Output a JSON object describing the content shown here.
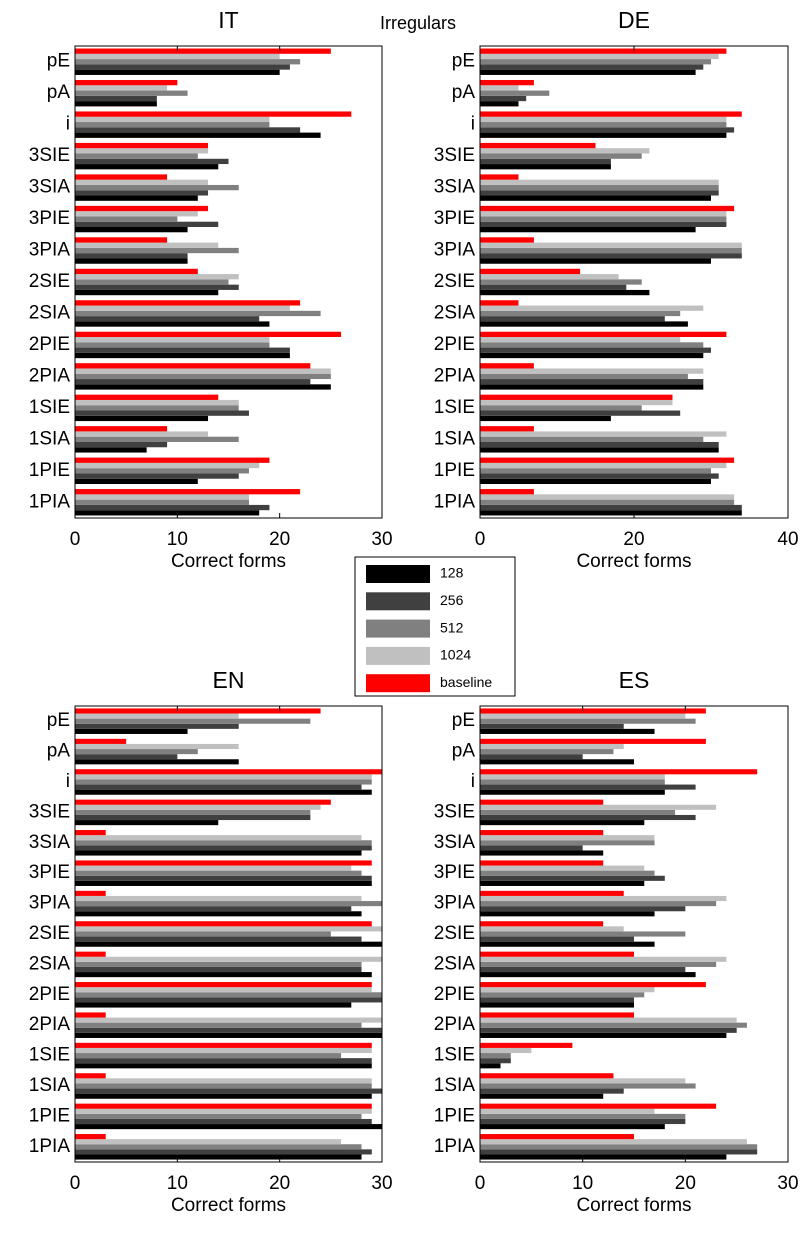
{
  "title": "Irregulars",
  "chart_data": [
    {
      "type": "bar",
      "orientation": "horizontal",
      "title": "IT",
      "xlabel": "Correct forms",
      "categories": [
        "pE",
        "pA",
        "i",
        "3SIE",
        "3SIA",
        "3PIE",
        "3PIA",
        "2SIE",
        "2SIA",
        "2PIE",
        "2PIA",
        "1SIE",
        "1SIA",
        "1PIE",
        "1PIA"
      ],
      "xlim": [
        0,
        30
      ],
      "xticks": [
        0,
        10,
        20,
        30
      ],
      "series": [
        {
          "name": "128",
          "color": "#000000",
          "values": [
            20,
            8,
            24,
            14,
            12,
            11,
            11,
            14,
            19,
            21,
            25,
            13,
            7,
            12,
            18
          ]
        },
        {
          "name": "256",
          "color": "#404040",
          "values": [
            21,
            8,
            22,
            15,
            13,
            14,
            11,
            16,
            18,
            21,
            23,
            17,
            9,
            16,
            19
          ]
        },
        {
          "name": "512",
          "color": "#808080",
          "values": [
            22,
            11,
            19,
            12,
            16,
            10,
            16,
            15,
            24,
            19,
            25,
            16,
            16,
            17,
            17
          ]
        },
        {
          "name": "1024",
          "color": "#c0c0c0",
          "values": [
            20,
            9,
            19,
            13,
            13,
            12,
            14,
            16,
            21,
            19,
            25,
            16,
            13,
            18,
            17
          ]
        },
        {
          "name": "baseline",
          "color": "#ff0000",
          "values": [
            25,
            10,
            27,
            13,
            9,
            13,
            9,
            12,
            22,
            26,
            23,
            14,
            9,
            19,
            22
          ]
        }
      ]
    },
    {
      "type": "bar",
      "orientation": "horizontal",
      "title": "DE",
      "xlabel": "Correct forms",
      "categories": [
        "pE",
        "pA",
        "i",
        "3SIE",
        "3SIA",
        "3PIE",
        "3PIA",
        "2SIE",
        "2SIA",
        "2PIE",
        "2PIA",
        "1SIE",
        "1SIA",
        "1PIE",
        "1PIA"
      ],
      "xlim": [
        0,
        40
      ],
      "xticks": [
        0,
        20,
        40
      ],
      "series": [
        {
          "name": "128",
          "color": "#000000",
          "values": [
            28,
            5,
            32,
            17,
            30,
            28,
            30,
            22,
            27,
            29,
            29,
            17,
            31,
            30,
            34
          ]
        },
        {
          "name": "256",
          "color": "#404040",
          "values": [
            29,
            6,
            33,
            17,
            31,
            32,
            34,
            19,
            24,
            30,
            29,
            26,
            31,
            31,
            34
          ]
        },
        {
          "name": "512",
          "color": "#808080",
          "values": [
            30,
            9,
            32,
            21,
            31,
            32,
            34,
            21,
            26,
            29,
            27,
            21,
            29,
            30,
            33
          ]
        },
        {
          "name": "1024",
          "color": "#c0c0c0",
          "values": [
            31,
            5,
            32,
            22,
            31,
            32,
            34,
            18,
            29,
            26,
            29,
            25,
            32,
            32,
            33
          ]
        },
        {
          "name": "baseline",
          "color": "#ff0000",
          "values": [
            32,
            7,
            34,
            15,
            5,
            33,
            7,
            13,
            5,
            32,
            7,
            25,
            7,
            33,
            7
          ]
        }
      ]
    },
    {
      "type": "bar",
      "orientation": "horizontal",
      "title": "EN",
      "xlabel": "Correct forms",
      "categories": [
        "pE",
        "pA",
        "i",
        "3SIE",
        "3SIA",
        "3PIE",
        "3PIA",
        "2SIE",
        "2SIA",
        "2PIE",
        "2PIA",
        "1SIE",
        "1SIA",
        "1PIE",
        "1PIA"
      ],
      "xlim": [
        0,
        30
      ],
      "xticks": [
        0,
        10,
        20,
        30
      ],
      "series": [
        {
          "name": "128",
          "color": "#000000",
          "values": [
            11,
            16,
            29,
            14,
            28,
            29,
            28,
            30,
            29,
            27,
            30,
            29,
            29,
            30,
            28
          ]
        },
        {
          "name": "256",
          "color": "#404040",
          "values": [
            16,
            10,
            28,
            23,
            29,
            29,
            27,
            28,
            28,
            30,
            30,
            29,
            30,
            29,
            29
          ]
        },
        {
          "name": "512",
          "color": "#808080",
          "values": [
            23,
            12,
            29,
            23,
            29,
            28,
            30,
            25,
            28,
            30,
            28,
            26,
            29,
            28,
            28
          ]
        },
        {
          "name": "1024",
          "color": "#c0c0c0",
          "values": [
            16,
            16,
            29,
            24,
            28,
            27,
            28,
            30,
            30,
            29,
            30,
            29,
            29,
            29,
            26
          ]
        },
        {
          "name": "baseline",
          "color": "#ff0000",
          "values": [
            24,
            5,
            30,
            25,
            3,
            29,
            3,
            29,
            3,
            29,
            3,
            29,
            3,
            29,
            3
          ]
        }
      ]
    },
    {
      "type": "bar",
      "orientation": "horizontal",
      "title": "ES",
      "xlabel": "Correct forms",
      "categories": [
        "pE",
        "pA",
        "i",
        "3SIE",
        "3SIA",
        "3PIE",
        "3PIA",
        "2SIE",
        "2SIA",
        "2PIE",
        "2PIA",
        "1SIE",
        "1SIA",
        "1PIE",
        "1PIA"
      ],
      "xlim": [
        0,
        30
      ],
      "xticks": [
        0,
        10,
        20,
        30
      ],
      "series": [
        {
          "name": "128",
          "color": "#000000",
          "values": [
            17,
            15,
            18,
            16,
            12,
            16,
            17,
            17,
            21,
            15,
            24,
            2,
            12,
            18,
            24
          ]
        },
        {
          "name": "256",
          "color": "#404040",
          "values": [
            14,
            10,
            21,
            21,
            10,
            18,
            20,
            15,
            20,
            15,
            25,
            3,
            14,
            20,
            27
          ]
        },
        {
          "name": "512",
          "color": "#808080",
          "values": [
            21,
            13,
            18,
            19,
            17,
            17,
            23,
            20,
            23,
            16,
            26,
            3,
            21,
            20,
            27
          ]
        },
        {
          "name": "1024",
          "color": "#c0c0c0",
          "values": [
            20,
            14,
            18,
            23,
            17,
            16,
            24,
            14,
            24,
            17,
            25,
            5,
            20,
            17,
            26
          ]
        },
        {
          "name": "baseline",
          "color": "#ff0000",
          "values": [
            22,
            22,
            27,
            12,
            12,
            12,
            14,
            12,
            15,
            22,
            15,
            9,
            13,
            23,
            15
          ]
        }
      ]
    }
  ]
}
